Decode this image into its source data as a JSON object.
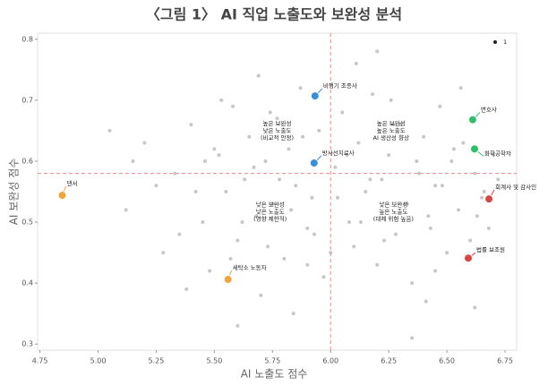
{
  "chart_data": {
    "type": "scatter",
    "title": "〈그림 1〉 AI 직업 노출도와 보완성 분석",
    "x_label": "AI 노출도 점수",
    "y_label": "AI 보완성 점수",
    "xlim": [
      4.74,
      6.8
    ],
    "ylim": [
      0.29,
      0.81
    ],
    "xticks": [
      4.75,
      {
        "value": 5,
        "label": "5.00"
      },
      5.25,
      {
        "value": 5.5,
        "label": "5.50"
      },
      5.75,
      {
        "value": 6,
        "label": "6.00"
      },
      6.25,
      {
        "value": 6.5,
        "label": "6.50"
      },
      6.75
    ],
    "yticks": [
      0.3,
      0.4,
      0.5,
      0.6,
      0.7,
      0.8
    ],
    "legend_position": "upper right",
    "legend_color": "#222222",
    "reference_lines": {
      "x": 6,
      "y": 0.58,
      "color": "#e88a8a"
    },
    "series": [
      {
        "name": "1",
        "color": "#bdbdbd",
        "x": [
          5.12,
          5.2,
          5.28,
          5.33,
          5.4,
          5.45,
          5.48,
          5.52,
          5.55,
          5.58,
          5.6,
          5.63,
          5.65,
          5.68,
          5.7,
          5.72,
          5.75,
          5.77,
          5.8,
          5.82,
          5.85,
          5.87,
          5.9,
          5.92,
          5.95,
          5.97,
          6.02,
          6.05,
          6.08,
          6.1,
          6.12,
          6.15,
          6.18,
          6.2,
          6.22,
          6.25,
          6.28,
          6.3,
          6.33,
          6.35,
          6.38,
          6.4,
          6.42,
          6.45,
          6.47,
          6.5,
          6.52,
          6.55,
          6.57,
          6.6,
          6.62,
          6.65,
          6.68,
          6.7,
          5.35,
          5.42,
          5.5,
          5.57,
          5.62,
          5.67,
          5.73,
          5.78,
          5.83,
          5.88,
          5.93,
          6.03,
          6.07,
          6.13,
          6.17,
          6.23,
          6.27,
          6.32,
          6.37,
          6.43,
          6.48,
          6.53,
          6.58,
          6.63,
          6.72,
          5.25,
          5.15,
          5.05,
          5.38,
          5.46,
          5.69,
          5.84,
          6.11,
          6.26,
          6.41,
          6.56,
          6.66,
          5.6,
          5.9,
          6.2,
          6.45,
          5.74,
          6.0,
          6.35,
          5.53,
          6.62
        ],
        "values": [
          0.52,
          0.63,
          0.45,
          0.58,
          0.66,
          0.5,
          0.42,
          0.61,
          0.55,
          0.69,
          0.47,
          0.57,
          0.64,
          0.51,
          0.38,
          0.6,
          0.53,
          0.67,
          0.44,
          0.62,
          0.56,
          0.72,
          0.49,
          0.54,
          0.65,
          0.41,
          0.59,
          0.68,
          0.5,
          0.46,
          0.63,
          0.55,
          0.71,
          0.43,
          0.57,
          0.61,
          0.48,
          0.66,
          0.53,
          0.4,
          0.58,
          0.64,
          0.51,
          0.56,
          0.69,
          0.45,
          0.6,
          0.52,
          0.63,
          0.47,
          0.58,
          0.54,
          0.49,
          0.61,
          0.48,
          0.55,
          0.62,
          0.44,
          0.5,
          0.59,
          0.46,
          0.57,
          0.52,
          0.64,
          0.48,
          0.54,
          0.61,
          0.5,
          0.57,
          0.47,
          0.66,
          0.53,
          0.6,
          0.49,
          0.56,
          0.62,
          0.44,
          0.51,
          0.57,
          0.56,
          0.6,
          0.65,
          0.39,
          0.6,
          0.74,
          0.35,
          0.76,
          0.7,
          0.37,
          0.72,
          0.55,
          0.33,
          0.43,
          0.78,
          0.42,
          0.68,
          0.45,
          0.31,
          0.7,
          0.36
        ]
      }
    ],
    "highlights": [
      {
        "label": "비행기 조종사",
        "x": 5.933,
        "y": 0.707,
        "color": "#3a8fd9"
      },
      {
        "label": "방사선치료사",
        "x": 5.929,
        "y": 0.597,
        "color": "#3a8fd9"
      },
      {
        "label": "변호사",
        "x": 6.611,
        "y": 0.668,
        "color": "#2fbf6a"
      },
      {
        "label": "화학공학자",
        "x": 6.619,
        "y": 0.62,
        "color": "#2fbf6a"
      },
      {
        "label": "회계사 및 감사인",
        "x": 6.681,
        "y": 0.538,
        "color": "#d9443e"
      },
      {
        "label": "법률 보조원",
        "x": 6.592,
        "y": 0.441,
        "color": "#d9443e"
      },
      {
        "label": "댄서",
        "x": 4.846,
        "y": 0.544,
        "color": "#f2a23a"
      },
      {
        "label": "세탁소 노동자",
        "x": 5.559,
        "y": 0.406,
        "color": "#f2a23a"
      }
    ],
    "quadrant_labels": [
      {
        "lines": [
          "높은 보완성",
          "낮은 노출도",
          "(비교적 안정)"
        ],
        "x": 5.77,
        "y": 0.65
      },
      {
        "lines": [
          "높은 보완성",
          "높은 노출도",
          "AI 생산성 향상"
        ],
        "x": 6.26,
        "y": 0.65
      },
      {
        "lines": [
          "낮은 보완성",
          "낮은 노출도",
          "(영향 제한적)"
        ],
        "x": 5.74,
        "y": 0.517
      },
      {
        "lines": [
          "낮은 보완성",
          "높은 노출도",
          "(대체 위험 높음)"
        ],
        "x": 6.27,
        "y": 0.517
      }
    ]
  }
}
